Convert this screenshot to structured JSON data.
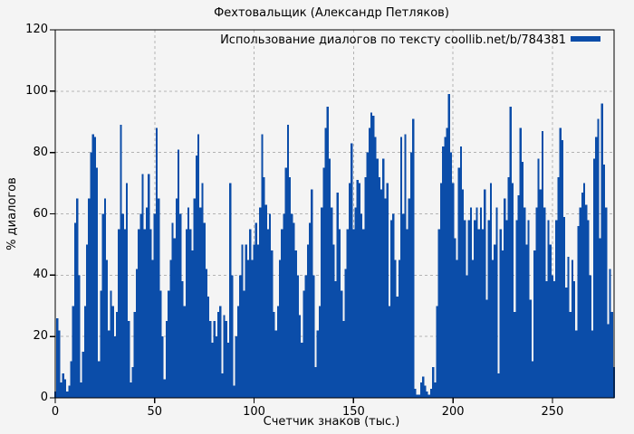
{
  "title": "Фехтовальщик (Александр Петляков)",
  "legend": {
    "label": "Использование диалогов по тексту coollib.net/b/784381",
    "swatch_color": "#0b4da9"
  },
  "chart_data": {
    "type": "bar",
    "title": "Фехтовальщик (Александр Петляков)",
    "xlabel": "Счетчик знаков (тыс.)",
    "ylabel": "% диалогов",
    "xlim": [
      0,
      281
    ],
    "ylim": [
      0,
      120
    ],
    "x_ticks": [
      0,
      50,
      100,
      150,
      200,
      250
    ],
    "y_ticks": [
      0,
      20,
      40,
      60,
      80,
      100,
      120
    ],
    "grid": true,
    "legend_position": "top-right-inside",
    "colors": {
      "bar": "#0b4da9",
      "background": "#f4f4f4",
      "grid": "#b3b3b3",
      "border": "#000000"
    },
    "series": [
      {
        "name": "Использование диалогов по тексту coollib.net/b/784381",
        "x_start": 0,
        "x_step": 1,
        "values": [
          2,
          26,
          22,
          5,
          8,
          6,
          2,
          4,
          12,
          30,
          57,
          65,
          40,
          5,
          15,
          30,
          50,
          65,
          80,
          86,
          85,
          75,
          12,
          35,
          60,
          65,
          45,
          22,
          35,
          30,
          20,
          28,
          55,
          89,
          60,
          55,
          70,
          25,
          5,
          10,
          28,
          42,
          55,
          60,
          73,
          55,
          62,
          73,
          55,
          45,
          60,
          88,
          65,
          35,
          20,
          6,
          25,
          35,
          45,
          57,
          52,
          65,
          81,
          60,
          38,
          30,
          55,
          62,
          55,
          48,
          65,
          79,
          86,
          62,
          70,
          57,
          42,
          33,
          25,
          18,
          25,
          20,
          28,
          30,
          8,
          27,
          25,
          18,
          70,
          40,
          4,
          20,
          30,
          40,
          50,
          35,
          50,
          45,
          55,
          45,
          50,
          57,
          50,
          62,
          86,
          72,
          63,
          55,
          60,
          48,
          28,
          22,
          30,
          45,
          55,
          60,
          75,
          89,
          72,
          60,
          57,
          48,
          40,
          27,
          18,
          35,
          40,
          50,
          57,
          68,
          40,
          10,
          22,
          30,
          62,
          75,
          88,
          95,
          78,
          62,
          50,
          38,
          67,
          55,
          35,
          25,
          42,
          55,
          70,
          83,
          55,
          62,
          71,
          70,
          60,
          55,
          72,
          80,
          88,
          93,
          92,
          85,
          78,
          72,
          68,
          78,
          65,
          70,
          30,
          58,
          60,
          45,
          33,
          45,
          85,
          60,
          86,
          55,
          65,
          80,
          91,
          3,
          1,
          1,
          5,
          7,
          4,
          2,
          1,
          3,
          10,
          5,
          30,
          55,
          70,
          82,
          85,
          88,
          99,
          80,
          70,
          52,
          45,
          75,
          82,
          68,
          58,
          40,
          58,
          62,
          45,
          58,
          62,
          55,
          62,
          55,
          68,
          32,
          58,
          70,
          45,
          50,
          62,
          8,
          55,
          48,
          65,
          58,
          72,
          95,
          70,
          28,
          58,
          66,
          88,
          77,
          62,
          50,
          58,
          32,
          12,
          48,
          62,
          78,
          68,
          87,
          62,
          38,
          58,
          50,
          40,
          38,
          58,
          72,
          88,
          84,
          59,
          36,
          46,
          28,
          45,
          38,
          22,
          56,
          62,
          67,
          70,
          63,
          58,
          40,
          22,
          78,
          85,
          91,
          52,
          96,
          76,
          62,
          24,
          42,
          28,
          10
        ]
      }
    ]
  }
}
